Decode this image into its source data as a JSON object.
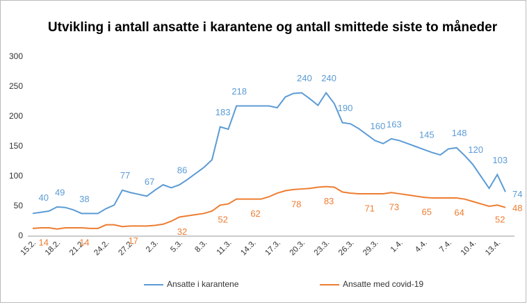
{
  "chart_data": {
    "type": "line",
    "title": "Utvikling i antall ansatte i karantene og antall smittede siste to måneder",
    "categories": [
      "15.2.",
      null,
      null,
      "18.2.",
      null,
      null,
      "21.2.",
      null,
      null,
      "24.2.",
      null,
      null,
      "27.2.",
      null,
      null,
      "2.3.",
      null,
      null,
      "5.3.",
      null,
      null,
      "8.3.",
      null,
      null,
      "11.3.",
      null,
      null,
      "14.3.",
      null,
      null,
      "17.3.",
      null,
      null,
      "20.3.",
      null,
      null,
      "23.3.",
      null,
      null,
      "26.3.",
      null,
      null,
      "29.3.",
      null,
      null,
      "1.4.",
      null,
      null,
      "4.4.",
      null,
      null,
      "7.4.",
      null,
      null,
      "10.4.",
      null,
      null,
      "13.4.",
      null
    ],
    "series": [
      {
        "name": "Ansatte i karantene",
        "color": "#5b9bd5",
        "values": [
          38,
          40,
          42,
          49,
          48,
          44,
          38,
          38,
          38,
          46,
          52,
          77,
          73,
          70,
          67,
          77,
          86,
          81,
          86,
          95,
          105,
          115,
          128,
          183,
          179,
          218,
          218,
          218,
          218,
          218,
          215,
          233,
          239,
          240,
          230,
          219,
          240,
          222,
          190,
          188,
          180,
          170,
          160,
          155,
          163,
          160,
          155,
          150,
          145,
          140,
          136,
          146,
          148,
          135,
          120,
          100,
          80,
          103,
          74
        ],
        "value_labels": [
          null,
          "40",
          null,
          "49",
          null,
          null,
          "38",
          null,
          null,
          null,
          null,
          "77",
          null,
          null,
          "67",
          null,
          null,
          null,
          "86",
          null,
          null,
          null,
          null,
          "183",
          null,
          "218",
          null,
          null,
          null,
          null,
          null,
          null,
          null,
          "240",
          null,
          null,
          "240",
          null,
          "190",
          null,
          null,
          null,
          "160",
          null,
          "163",
          null,
          null,
          null,
          "145",
          null,
          null,
          null,
          "148",
          null,
          "120",
          null,
          null,
          "103",
          "74"
        ]
      },
      {
        "name": "Ansatte med covid-19",
        "color": "#ed7d31",
        "values": [
          13,
          14,
          14,
          12,
          14,
          14,
          14,
          13,
          13,
          19,
          19,
          16,
          17,
          17,
          17,
          18,
          20,
          25,
          32,
          34,
          36,
          38,
          42,
          52,
          54,
          62,
          62,
          62,
          62,
          66,
          72,
          76,
          78,
          79,
          80,
          82,
          83,
          82,
          74,
          72,
          71,
          71,
          71,
          71,
          73,
          71,
          69,
          67,
          65,
          64,
          64,
          64,
          64,
          62,
          58,
          54,
          50,
          52,
          48
        ],
        "value_labels": [
          null,
          "14",
          null,
          null,
          null,
          null,
          "14",
          null,
          null,
          null,
          null,
          null,
          "17",
          null,
          null,
          null,
          null,
          null,
          "32",
          null,
          null,
          null,
          null,
          "52",
          null,
          null,
          null,
          "62",
          null,
          null,
          null,
          null,
          "78",
          null,
          null,
          null,
          "83",
          null,
          null,
          null,
          null,
          "71",
          null,
          null,
          "73",
          null,
          null,
          null,
          "65",
          null,
          null,
          null,
          "64",
          null,
          null,
          null,
          null,
          "52",
          "48"
        ]
      }
    ],
    "ylim": [
      0,
      300
    ],
    "yticks": [
      0,
      50,
      100,
      150,
      200,
      250,
      300
    ],
    "grid": false,
    "legend": "bottom"
  }
}
